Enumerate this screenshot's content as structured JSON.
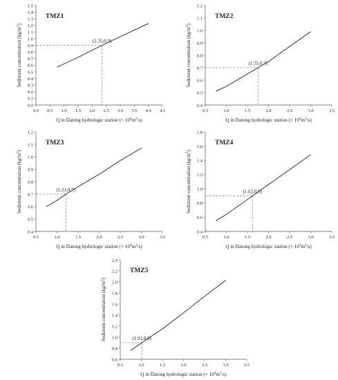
{
  "chart_data": [
    {
      "type": "line",
      "title": "TMZ1",
      "xlabel": {
        "pre": "Q in Datong hydrologic station (× 10",
        "sup1": "4",
        "mid": "m",
        "sup2": "3",
        "post": "/s)"
      },
      "ylabel": {
        "pre": "Sediment concentration (kg/m",
        "sup": "3",
        "post": ")"
      },
      "xlim": [
        0,
        4.5
      ],
      "ylim": [
        0,
        1.5
      ],
      "x_ticks": [
        0.0,
        0.5,
        1.0,
        1.5,
        2.0,
        2.5,
        3.0,
        3.5,
        4.0,
        4.5
      ],
      "x_tick_labels": [
        "0.0",
        "0.5",
        "1.0",
        "1.5",
        "2.0",
        "2.5",
        "3.0",
        "3.5",
        "4.0",
        "4.5"
      ],
      "y_ticks": [
        0.0,
        0.1,
        0.2,
        0.3,
        0.4,
        0.5,
        0.6,
        0.7,
        0.8,
        0.9,
        1.0,
        1.1,
        1.2,
        1.3,
        1.4,
        1.5
      ],
      "y_tick_labels": [
        "0.0",
        "0.1",
        "0.2",
        "0.3",
        "0.4",
        "0.5",
        "0.6",
        "0.7",
        "0.8",
        "0.9",
        "1.0",
        "1.1",
        "1.2",
        "1.3",
        "1.4",
        "1.5"
      ],
      "series": [
        {
          "x": [
            0.75,
            1.5,
            2.35,
            3.0,
            4.0
          ],
          "y": [
            0.57,
            0.72,
            0.9,
            1.03,
            1.23
          ]
        }
      ],
      "marker": {
        "x": 2.35,
        "y": 0.9,
        "label": "(2.35,0.9)"
      },
      "grid": false
    },
    {
      "type": "line",
      "title": "TMZ2",
      "xlabel": {
        "pre": "Q in Datong hydrologic station (× 10",
        "sup1": "4",
        "mid": "m",
        "sup2": "3",
        "post": "/s)"
      },
      "ylabel": {
        "pre": "Sediment concentration (kg/m",
        "sup": "3",
        "post": ")"
      },
      "xlim": [
        0.5,
        3.5
      ],
      "ylim": [
        0.4,
        1.2
      ],
      "x_ticks": [
        0.5,
        1.0,
        1.5,
        2.0,
        2.5,
        3.0,
        3.5
      ],
      "x_tick_labels": [
        "0.5",
        "1.0",
        "1.5",
        "2.0",
        "2.5",
        "3.0",
        "3.5"
      ],
      "y_ticks": [
        0.4,
        0.5,
        0.6,
        0.7,
        0.8,
        0.9,
        1.0,
        1.1,
        1.2
      ],
      "y_tick_labels": [
        "0.4",
        "0.5",
        "0.6",
        "0.7",
        "0.8",
        "0.9",
        "1.0",
        "1.1",
        "1.2"
      ],
      "series": [
        {
          "x": [
            0.75,
            1.0,
            1.25,
            1.5,
            1.75,
            2.0,
            2.5,
            3.0
          ],
          "y": [
            0.51,
            0.55,
            0.6,
            0.65,
            0.7,
            0.75,
            0.87,
            0.99
          ]
        }
      ],
      "marker": {
        "x": 1.75,
        "y": 0.7,
        "label": "(1.75,0.7)"
      },
      "grid": false
    },
    {
      "type": "line",
      "title": "TMZ3",
      "xlabel": {
        "pre": "Q in Datong hydrologic station (× 10",
        "sup1": "4",
        "mid": "m",
        "sup2": "3",
        "post": "/s)"
      },
      "ylabel": {
        "pre": "Sediment concentration (kg/m",
        "sup": "3",
        "post": ")"
      },
      "xlim": [
        0.5,
        3.5
      ],
      "ylim": [
        0.4,
        1.2
      ],
      "x_ticks": [
        0.5,
        1.0,
        1.5,
        2.0,
        2.5,
        3.0,
        3.5
      ],
      "x_tick_labels": [
        "0.5",
        "1.0",
        "1.5",
        "2.0",
        "2.5",
        "3.0",
        "3.5"
      ],
      "y_ticks": [
        0.4,
        0.5,
        0.6,
        0.7,
        0.8,
        0.9,
        1.0,
        1.1,
        1.2
      ],
      "y_tick_labels": [
        "0.4",
        "0.5",
        "0.6",
        "0.7",
        "0.8",
        "0.9",
        "1.0",
        "1.1",
        "1.2"
      ],
      "series": [
        {
          "x": [
            0.75,
            1.0,
            1.21,
            1.5,
            2.0,
            2.5,
            3.0
          ],
          "y": [
            0.6,
            0.65,
            0.7,
            0.76,
            0.86,
            0.97,
            1.07
          ]
        }
      ],
      "marker": {
        "x": 1.21,
        "y": 0.7,
        "label": "(1.21,0.7)"
      },
      "grid": false
    },
    {
      "type": "line",
      "title": "TMZ4",
      "xlabel": {
        "pre": "Q in Datong hydrologic station (× 10",
        "sup1": "4",
        "mid": "m",
        "sup2": "3",
        "post": "/s)"
      },
      "ylabel": {
        "pre": "Sediment concentration (kg/m",
        "sup": "3",
        "post": ")"
      },
      "xlim": [
        0.5,
        3.5
      ],
      "ylim": [
        0.4,
        1.8
      ],
      "x_ticks": [
        0.5,
        1.0,
        1.5,
        2.0,
        2.5,
        3.0,
        3.5
      ],
      "x_tick_labels": [
        "0.5",
        "1.0",
        "1.5",
        "2.0",
        "2.5",
        "3.0",
        "3.5"
      ],
      "y_ticks": [
        0.4,
        0.6,
        0.8,
        1.0,
        1.2,
        1.4,
        1.6,
        1.8
      ],
      "y_tick_labels": [
        "0.4",
        "0.6",
        "0.8",
        "1.0",
        "1.2",
        "1.4",
        "1.6",
        "1.8"
      ],
      "series": [
        {
          "x": [
            0.75,
            1.0,
            1.62,
            2.0,
            2.5,
            3.0
          ],
          "y": [
            0.55,
            0.64,
            0.9,
            1.06,
            1.27,
            1.48
          ]
        }
      ],
      "marker": {
        "x": 1.62,
        "y": 0.9,
        "label": "(1.62,0.9)"
      },
      "grid": false
    },
    {
      "type": "line",
      "title": "TMZ5",
      "xlabel": {
        "pre": "Q in Datong hydrologic station (× 10",
        "sup1": "4",
        "mid": "m",
        "sup2": "3",
        "post": "/s)"
      },
      "ylabel": {
        "pre": "Sediment concentration (kg/m",
        "sup": "3",
        "post": ")"
      },
      "xlim": [
        0.5,
        3.5
      ],
      "ylim": [
        0.6,
        2.4
      ],
      "x_ticks": [
        0.5,
        1.0,
        1.5,
        2.0,
        2.5,
        3.0,
        3.5
      ],
      "x_tick_labels": [
        "0.5",
        "1.0",
        "1.5",
        "2.0",
        "2.5",
        "3.0",
        "3.5"
      ],
      "y_ticks": [
        0.6,
        0.8,
        1.0,
        1.2,
        1.4,
        1.6,
        1.8,
        2.0,
        2.2,
        2.4
      ],
      "y_tick_labels": [
        "0.6",
        "0.8",
        "1.0",
        "1.2",
        "1.4",
        "1.6",
        "1.8",
        "2.0",
        "2.2",
        "2.4"
      ],
      "series": [
        {
          "x": [
            0.75,
            1.01,
            1.5,
            2.0,
            2.5,
            3.0
          ],
          "y": [
            0.76,
            0.9,
            1.15,
            1.44,
            1.74,
            2.03
          ]
        }
      ],
      "marker": {
        "x": 1.01,
        "y": 0.9,
        "label": "(1.01,0.9)"
      },
      "grid": false
    }
  ],
  "colors": {
    "line": "#1a1a1a",
    "guide": "#8c8c8c",
    "axis": "#555555",
    "text": "#222222"
  }
}
